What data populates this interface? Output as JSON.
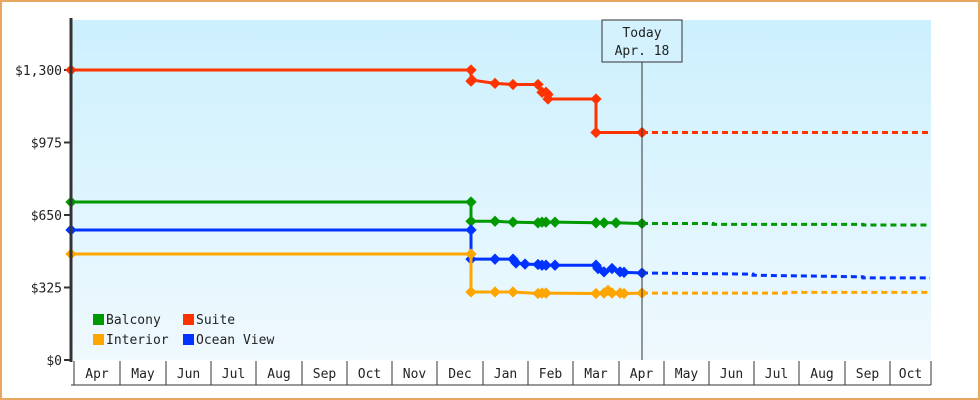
{
  "chart_data": {
    "type": "line",
    "title": "",
    "xlabel": "",
    "ylabel": "",
    "ylim": [
      0,
      1300
    ],
    "yticks": [
      "$0",
      "$325",
      "$650",
      "$975",
      "$1,300"
    ],
    "ytick_values": [
      0,
      325,
      650,
      975,
      1300
    ],
    "x_categories": [
      "Apr",
      "May",
      "Jun",
      "Jul",
      "Aug",
      "Sep",
      "Oct",
      "Nov",
      "Dec",
      "Jan",
      "Feb",
      "Mar",
      "Apr",
      "May",
      "Jun",
      "Jul",
      "Aug",
      "Sep",
      "Oct"
    ],
    "annotation": {
      "line1": "Today",
      "line2": "Apr. 18"
    },
    "legend": [
      {
        "name": "Balcony",
        "color": "#009900"
      },
      {
        "name": "Suite",
        "color": "#ff3300"
      },
      {
        "name": "Interior",
        "color": "#ffa500"
      },
      {
        "name": "Ocean View",
        "color": "#0033ff"
      }
    ],
    "series": [
      {
        "name": "Suite",
        "color": "#ff3300",
        "points": [
          [
            71,
            1300
          ],
          [
            471,
            1300
          ],
          [
            471,
            1250
          ],
          [
            472,
            1255
          ],
          [
            495,
            1240
          ],
          [
            513,
            1235
          ],
          [
            538,
            1235
          ],
          [
            542,
            1200
          ],
          [
            548,
            1190
          ],
          [
            546,
            1200
          ],
          [
            548,
            1170
          ],
          [
            596,
            1170
          ],
          [
            596,
            1020
          ],
          [
            642,
            1020
          ]
        ],
        "forecast": [
          [
            642,
            1020
          ],
          [
            930,
            1020
          ]
        ]
      },
      {
        "name": "Balcony",
        "color": "#009900",
        "points": [
          [
            71,
            708
          ],
          [
            471,
            708
          ],
          [
            471,
            622
          ],
          [
            495,
            622
          ],
          [
            513,
            618
          ],
          [
            538,
            615
          ],
          [
            542,
            618
          ],
          [
            546,
            618
          ],
          [
            555,
            618
          ],
          [
            596,
            615
          ],
          [
            604,
            615
          ],
          [
            616,
            615
          ],
          [
            642,
            612
          ]
        ],
        "forecast": [
          [
            642,
            612
          ],
          [
            713,
            612
          ],
          [
            713,
            608
          ],
          [
            863,
            608
          ],
          [
            863,
            605
          ],
          [
            930,
            605
          ]
        ]
      },
      {
        "name": "Ocean View",
        "color": "#0033ff",
        "points": [
          [
            71,
            583
          ],
          [
            471,
            583
          ],
          [
            471,
            452
          ],
          [
            495,
            452
          ],
          [
            513,
            452
          ],
          [
            516,
            435
          ],
          [
            525,
            430
          ],
          [
            538,
            428
          ],
          [
            542,
            425
          ],
          [
            546,
            425
          ],
          [
            555,
            425
          ],
          [
            596,
            425
          ],
          [
            598,
            410
          ],
          [
            604,
            395
          ],
          [
            612,
            410
          ],
          [
            620,
            395
          ],
          [
            624,
            393
          ],
          [
            642,
            390
          ]
        ],
        "forecast": [
          [
            642,
            390
          ],
          [
            753,
            385
          ],
          [
            753,
            380
          ],
          [
            863,
            373
          ],
          [
            863,
            368
          ],
          [
            930,
            368
          ]
        ]
      },
      {
        "name": "Interior",
        "color": "#ffa500",
        "points": [
          [
            71,
            475
          ],
          [
            471,
            475
          ],
          [
            471,
            305
          ],
          [
            495,
            305
          ],
          [
            513,
            305
          ],
          [
            538,
            298
          ],
          [
            542,
            300
          ],
          [
            546,
            300
          ],
          [
            596,
            298
          ],
          [
            604,
            300
          ],
          [
            608,
            312
          ],
          [
            612,
            300
          ],
          [
            620,
            300
          ],
          [
            624,
            298
          ],
          [
            642,
            300
          ]
        ],
        "forecast": [
          [
            642,
            300
          ],
          [
            786,
            300
          ],
          [
            786,
            303
          ],
          [
            930,
            303
          ]
        ]
      }
    ]
  }
}
